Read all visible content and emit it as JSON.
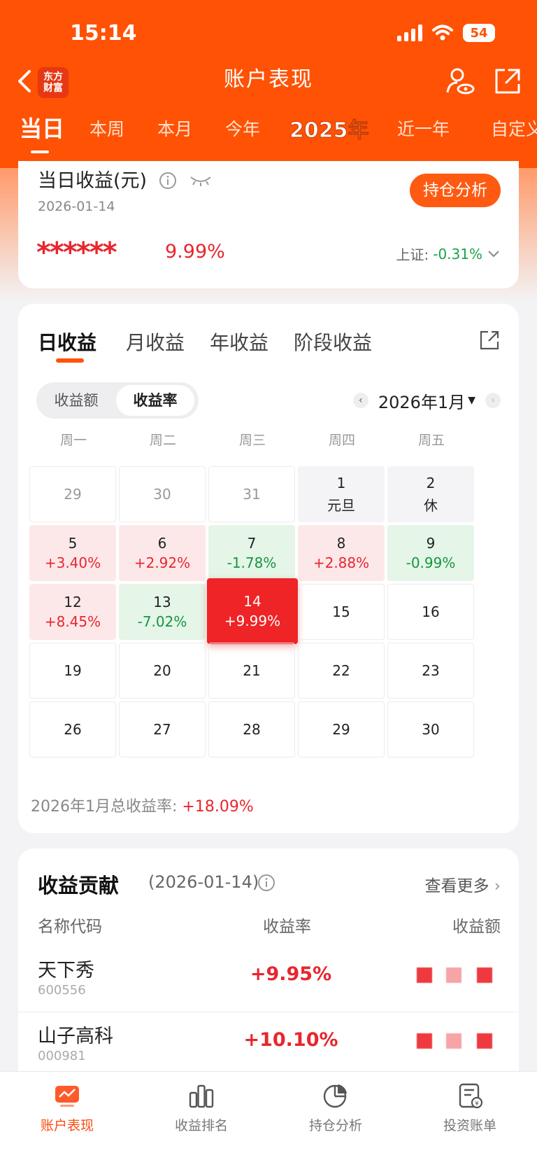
{
  "status_bar": {
    "time": "15:14",
    "battery": "54"
  },
  "header": {
    "title": "账户表现",
    "brand_line1": "东方",
    "brand_line2": "财富",
    "tabs": [
      "当日",
      "本周",
      "本月",
      "今年",
      "2025年",
      "近一年",
      "自定义"
    ],
    "active_tab": "当日"
  },
  "daily": {
    "title": "当日收益(元)",
    "date": "2026-01-14",
    "amount_masked": "******",
    "rate": "9.99%",
    "analysis_button": "持仓分析",
    "index_label": "上证:",
    "index_value": "-0.31%"
  },
  "calendar": {
    "tabs": [
      "日收益",
      "月收益",
      "年收益",
      "阶段收益"
    ],
    "toggle": [
      "收益额",
      "收益率"
    ],
    "month": "2026年1月",
    "weekdays": [
      "周一",
      "周二",
      "周三",
      "周四",
      "周五"
    ],
    "cells": [
      {
        "day": "29",
        "value": "",
        "state": "prev"
      },
      {
        "day": "30",
        "value": "",
        "state": "prev"
      },
      {
        "day": "31",
        "value": "",
        "state": "prev"
      },
      {
        "day": "1",
        "value": "元旦",
        "state": "holiday"
      },
      {
        "day": "2",
        "value": "休",
        "state": "holiday"
      },
      {
        "day": "5",
        "value": "+3.40%",
        "state": "up"
      },
      {
        "day": "6",
        "value": "+2.92%",
        "state": "up"
      },
      {
        "day": "7",
        "value": "-1.78%",
        "state": "down"
      },
      {
        "day": "8",
        "value": "+2.88%",
        "state": "up"
      },
      {
        "day": "9",
        "value": "-0.99%",
        "state": "down"
      },
      {
        "day": "12",
        "value": "+8.45%",
        "state": "up"
      },
      {
        "day": "13",
        "value": "-7.02%",
        "state": "down"
      },
      {
        "day": "14",
        "value": "+9.99%",
        "state": "today"
      },
      {
        "day": "15",
        "value": "",
        "state": "future"
      },
      {
        "day": "16",
        "value": "",
        "state": "future"
      },
      {
        "day": "19",
        "value": "",
        "state": "future"
      },
      {
        "day": "20",
        "value": "",
        "state": "future"
      },
      {
        "day": "21",
        "value": "",
        "state": "future"
      },
      {
        "day": "22",
        "value": "",
        "state": "future"
      },
      {
        "day": "23",
        "value": "",
        "state": "future"
      },
      {
        "day": "26",
        "value": "",
        "state": "future"
      },
      {
        "day": "27",
        "value": "",
        "state": "future"
      },
      {
        "day": "28",
        "value": "",
        "state": "future"
      },
      {
        "day": "29",
        "value": "",
        "state": "future"
      },
      {
        "day": "30",
        "value": "",
        "state": "future"
      }
    ],
    "total_label": "2026年1月总收益率:",
    "total_value": "+18.09%"
  },
  "contribution": {
    "title": "收益贡献",
    "date": "(2026-01-14)",
    "more": "查看更多",
    "columns": [
      "名称代码",
      "收益率",
      "收益额"
    ],
    "rows": [
      {
        "name": "天下秀",
        "code": "600556",
        "rate": "+9.95%"
      },
      {
        "name": "山子高科",
        "code": "000981",
        "rate": "+10.10%"
      }
    ]
  },
  "bottom_nav": [
    {
      "label": "账户表现",
      "icon": "chart-screen-icon",
      "active": true
    },
    {
      "label": "收益排名",
      "icon": "bar-rank-icon",
      "active": false
    },
    {
      "label": "持仓分析",
      "icon": "pie-icon",
      "active": false
    },
    {
      "label": "投资账单",
      "icon": "bill-icon",
      "active": false
    }
  ],
  "colors": {
    "brand": "#ff5204",
    "up": "#e8262e",
    "down": "#15973f"
  }
}
